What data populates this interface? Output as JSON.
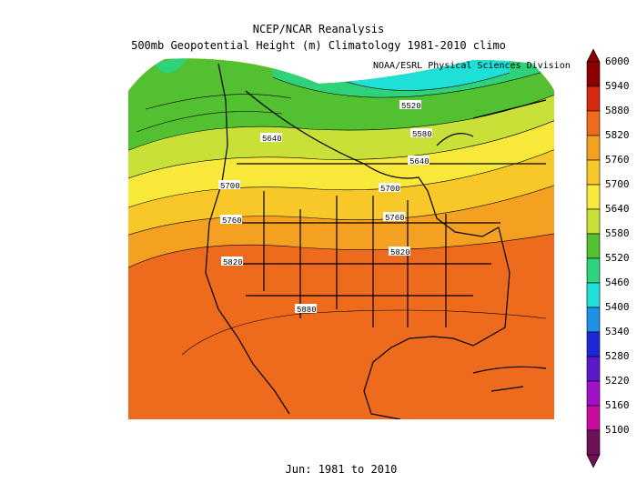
{
  "header": {
    "title_line1": "NCEP/NCAR Reanalysis",
    "title_line2": "500mb Geopotential Height (m) Climatology 1981-2010 climo",
    "credit": "NOAA/ESRL Physical Sciences Division"
  },
  "footer": {
    "period": "Jun: 1981 to 2010"
  },
  "map": {
    "region": "North America",
    "contour_labels": [
      "5520",
      "5580",
      "5640",
      "5640",
      "5700",
      "5700",
      "5760",
      "5760",
      "5820",
      "5820",
      "5880"
    ]
  },
  "colorbar": {
    "ticks": [
      "6000",
      "5940",
      "5880",
      "5820",
      "5760",
      "5700",
      "5640",
      "5580",
      "5520",
      "5460",
      "5400",
      "5340",
      "5280",
      "5220",
      "5160",
      "5100"
    ],
    "colors": [
      "#8b0000",
      "#d62a10",
      "#ee6b1e",
      "#f4a020",
      "#f8c828",
      "#f8e83a",
      "#c8e038",
      "#52c030",
      "#2ed27a",
      "#1ee0d6",
      "#1e90e6",
      "#1c28d8",
      "#5a18c8",
      "#a010c8",
      "#c80ca0",
      "#6c1058"
    ]
  }
}
